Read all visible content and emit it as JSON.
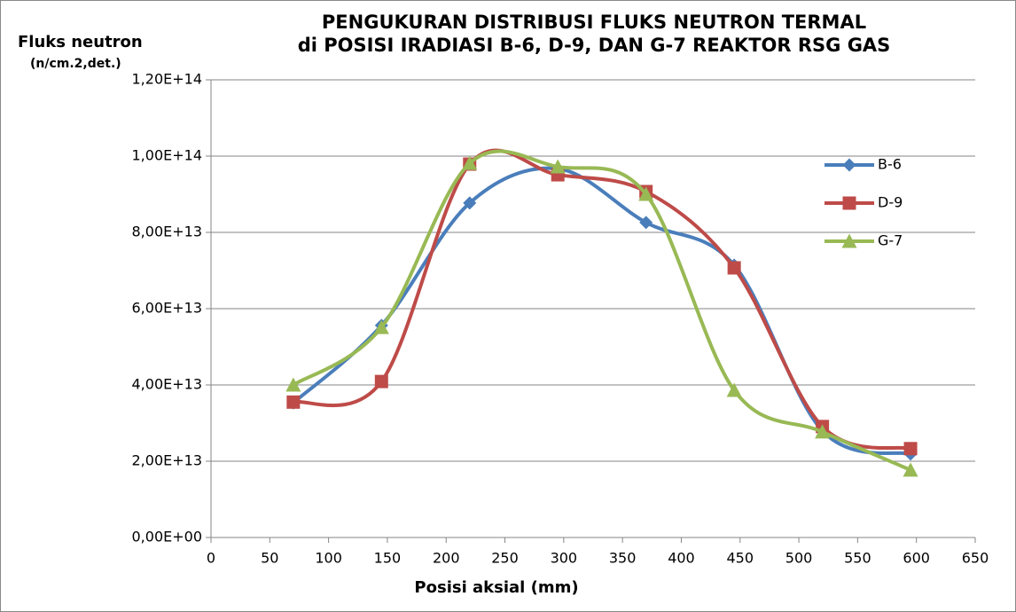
{
  "chart_data": {
    "type": "line",
    "title": [
      "PENGUKURAN DISTRIBUSI FLUKS NEUTRON TERMAL",
      "di POSISI IRADIASI B-6, D-9, DAN G-7 REAKTOR RSG GAS"
    ],
    "y_label": [
      "Fluks neutron",
      "(n/cm.2,det.)"
    ],
    "x_label": "Posisi aksial (mm)",
    "x": [
      70,
      145,
      220,
      295,
      370,
      445,
      520,
      595
    ],
    "series": [
      {
        "name": "B-6",
        "color": "#4a7ebb",
        "marker": "diamond",
        "values": [
          35300000000000.0,
          55600000000000.0,
          87700000000000.0,
          96700000000000.0,
          82600000000000.0,
          71400000000000.0,
          28000000000000.0,
          21900000000000.0
        ]
      },
      {
        "name": "D-9",
        "color": "#be4b48",
        "marker": "square",
        "values": [
          35500000000000.0,
          40900000000000.0,
          97900000000000.0,
          95100000000000.0,
          90700000000000.0,
          70700000000000.0,
          29100000000000.0,
          23300000000000.0
        ]
      },
      {
        "name": "G-7",
        "color": "#98b954",
        "marker": "triangle",
        "values": [
          40000000000000.0,
          55100000000000.0,
          98100000000000.0,
          97200000000000.0,
          90000000000000.0,
          38600000000000.0,
          27700000000000.0,
          17700000000000.0
        ]
      }
    ],
    "xlim": [
      0,
      650
    ],
    "xticks": [
      0,
      50,
      100,
      150,
      200,
      250,
      300,
      350,
      400,
      450,
      500,
      550,
      600,
      650
    ],
    "ylim": [
      0,
      120000000000000.0
    ],
    "yticks": [
      {
        "value": 0,
        "label": "0,00E+00"
      },
      {
        "value": 20000000000000.0,
        "label": "2,00E+13"
      },
      {
        "value": 40000000000000.0,
        "label": "4,00E+13"
      },
      {
        "value": 60000000000000.0,
        "label": "6,00E+13"
      },
      {
        "value": 80000000000000.0,
        "label": "8,00E+13"
      },
      {
        "value": 100000000000000.0,
        "label": "1,00E+14"
      },
      {
        "value": 120000000000000.0,
        "label": "1,20E+14"
      }
    ],
    "grid": true,
    "smooth": true,
    "legend": "right"
  }
}
